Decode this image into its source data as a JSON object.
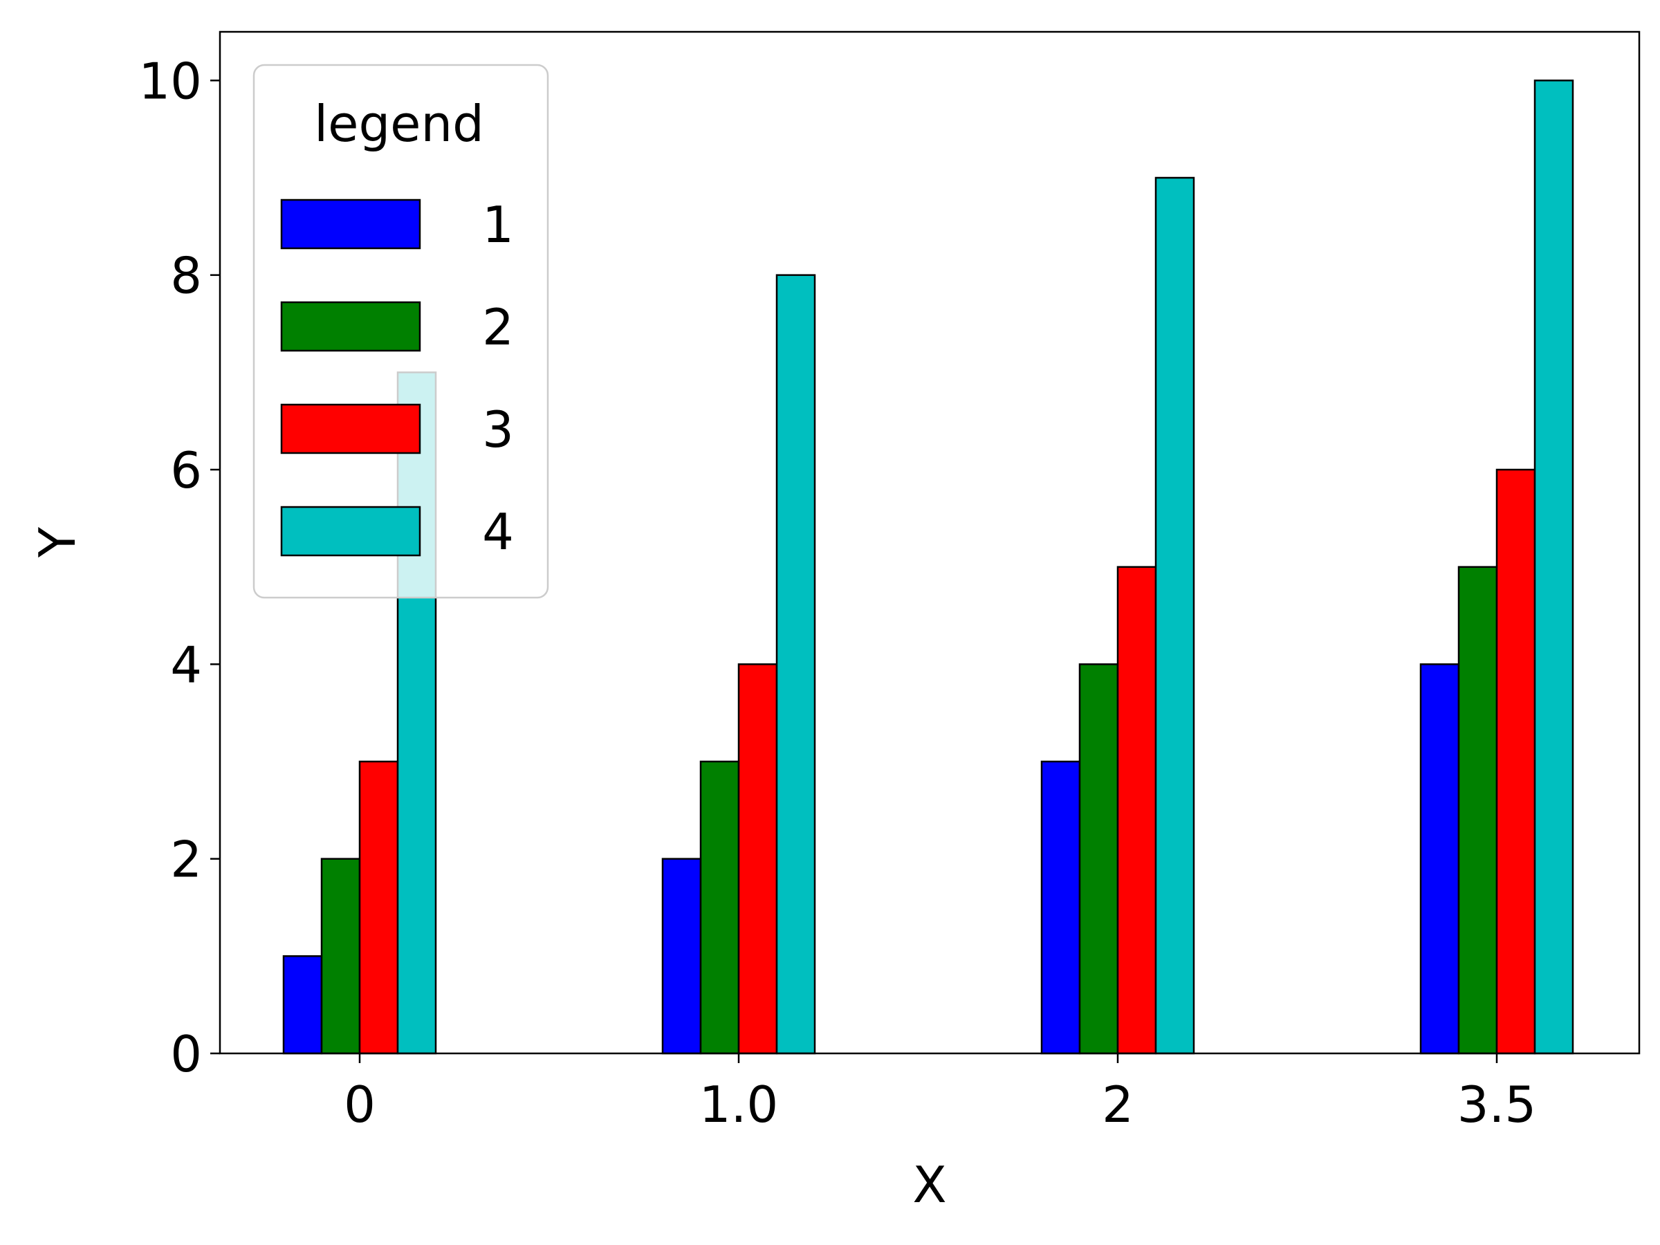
{
  "chart_data": {
    "type": "bar",
    "categories": [
      "0",
      "1.0",
      "2",
      "3.5"
    ],
    "series": [
      {
        "name": "1",
        "color": "#0000ff",
        "values": [
          1,
          2,
          3,
          4
        ]
      },
      {
        "name": "2",
        "color": "#008000",
        "values": [
          2,
          3,
          4,
          5
        ]
      },
      {
        "name": "3",
        "color": "#ff0000",
        "values": [
          3,
          4,
          5,
          6
        ]
      },
      {
        "name": "4",
        "color": "#00bfbf",
        "values": [
          7,
          8,
          9,
          10
        ]
      }
    ],
    "title": "",
    "xlabel": "X",
    "ylabel": "Y",
    "ylim": [
      0,
      10.5
    ],
    "yticks": [
      0,
      2,
      4,
      6,
      8,
      10
    ],
    "legend": {
      "title": "legend",
      "position": "upper-left"
    },
    "grid": false
  }
}
